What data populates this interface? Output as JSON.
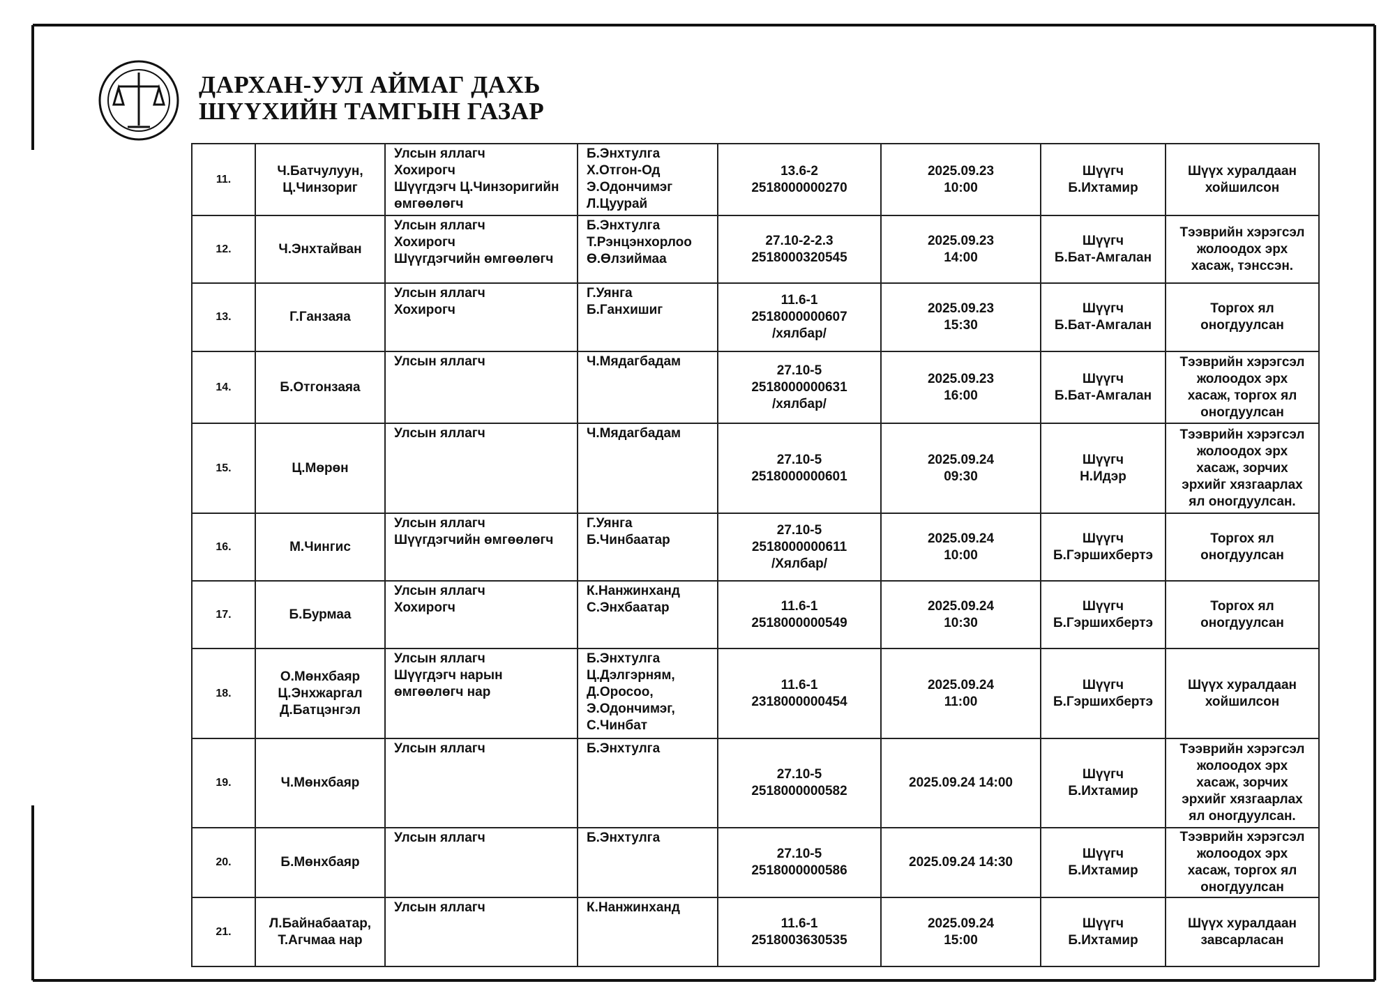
{
  "header": {
    "line1": "ДАРХАН-УУЛ АЙМАГ ДАХЬ",
    "line2": "ШҮҮХИЙН ТАМГЫН ГАЗАР"
  },
  "table": {
    "rows": [
      [
        "11.",
        "Ч.Батчулуун,\nЦ.Чинзориг",
        "Улсын яллагч\nХохирогч\nШүүгдэгч Ц.Чинзоригийн\nөмгөөлөгч",
        "Б.Энхтулга\nХ.Отгон-Од\nЭ.Одончимэг\nЛ.Цуурай",
        "13.6-2\n2518000000270",
        "2025.09.23\n10:00",
        "Шүүгч\nБ.Ихтамир",
        "Шүүх хуралдаан\nхойшилсон"
      ],
      [
        "12.",
        "Ч.Энхтайван",
        "Улсын яллагч\nХохирогч\nШүүгдэгчийн өмгөөлөгч",
        "Б.Энхтулга\nТ.Рэнцэнхорлоо\nӨ.Өлзиймаа",
        "27.10-2-2.3\n2518000320545",
        "2025.09.23\n14:00",
        "Шүүгч\nБ.Бат-Амгалан",
        "Тээврийн хэрэгсэл\nжолоодох эрх\nхасаж, тэнссэн."
      ],
      [
        "13.",
        "Г.Ганзаяа",
        "Улсын яллагч\nХохирогч",
        "Г.Уянга\nБ.Ганхишиг",
        "11.6-1\n2518000000607\n/хялбар/",
        "2025.09.23\n15:30",
        "Шүүгч\nБ.Бат-Амгалан",
        "Торгох ял\nоногдуулсан"
      ],
      [
        "14.",
        "Б.Отгонзаяа",
        "Улсын яллагч",
        "Ч.Мядагбадам",
        "27.10-5\n2518000000631\n/хялбар/",
        "2025.09.23\n16:00",
        "Шүүгч\nБ.Бат-Амгалан",
        "Тээврийн хэрэгсэл\nжолоодох эрх\nхасаж, торгох ял\nоногдуулсан"
      ],
      [
        "15.",
        "Ц.Мөрөн",
        "Улсын яллагч",
        "Ч.Мядагбадам",
        "27.10-5\n2518000000601",
        "2025.09.24\n09:30",
        "Шүүгч\nН.Идэр",
        "Тээврийн хэрэгсэл\nжолоодох эрх\nхасаж,  зорчих\nэрхийг хязгаарлах\nял оногдуулсан."
      ],
      [
        "16.",
        "М.Чингис",
        "Улсын яллагч\nШүүгдэгчийн өмгөөлөгч",
        "Г.Уянга\nБ.Чинбаатар",
        "27.10-5\n2518000000611\n/Хялбар/",
        "2025.09.24\n10:00",
        "Шүүгч\nБ.Гэршихбертэ",
        "Торгох ял\nоногдуулсан"
      ],
      [
        "17.",
        "Б.Бурмаа",
        "Улсын яллагч\nХохирогч",
        "К.Нанжинханд\nС.Энхбаатар",
        "11.6-1\n2518000000549",
        "2025.09.24\n10:30",
        "Шүүгч\nБ.Гэршихбертэ",
        "Торгох ял\nоногдуулсан"
      ],
      [
        "18.",
        "О.Мөнхбаяр\nЦ.Энхжаргал\nД.Батцэнгэл",
        "Улсын яллагч\nШүүгдэгч нарын\nөмгөөлөгч нар",
        "Б.Энхтулга\nЦ.Дэлгэрням,\nД.Оросоо,\nЭ.Одончимэг,\nС.Чинбат",
        "11.6-1\n2318000000454",
        "2025.09.24\n11:00",
        "Шүүгч\nБ.Гэршихбертэ",
        "Шүүх хуралдаан\nхойшилсон"
      ],
      [
        "19.",
        "Ч.Мөнхбаяр",
        "Улсын яллагч",
        "Б.Энхтулга",
        "27.10-5\n2518000000582",
        "2025.09.24 14:00",
        "Шүүгч\nБ.Ихтамир",
        "Тээврийн хэрэгсэл\nжолоодох эрх\nхасаж,  зорчих\nэрхийг хязгаарлах\nял оногдуулсан."
      ],
      [
        "20.",
        "Б.Мөнхбаяр",
        "Улсын яллагч",
        "Б.Энхтулга",
        "27.10-5\n2518000000586",
        "2025.09.24 14:30",
        "Шүүгч\nБ.Ихтамир",
        "Тээврийн хэрэгсэл\nжолоодох эрх\nхасаж, торгох ял\nоногдуулсан"
      ],
      [
        "21.",
        "Л.Байнабаатар,\nТ.Агчмаа нар",
        "Улсын яллагч",
        "К.Нанжинханд",
        "11.6-1\n2518003630535",
        "2025.09.24\n15:00",
        "Шүүгч\nБ.Ихтамир",
        "Шүүх хуралдаан\nзавсарласан"
      ]
    ]
  }
}
